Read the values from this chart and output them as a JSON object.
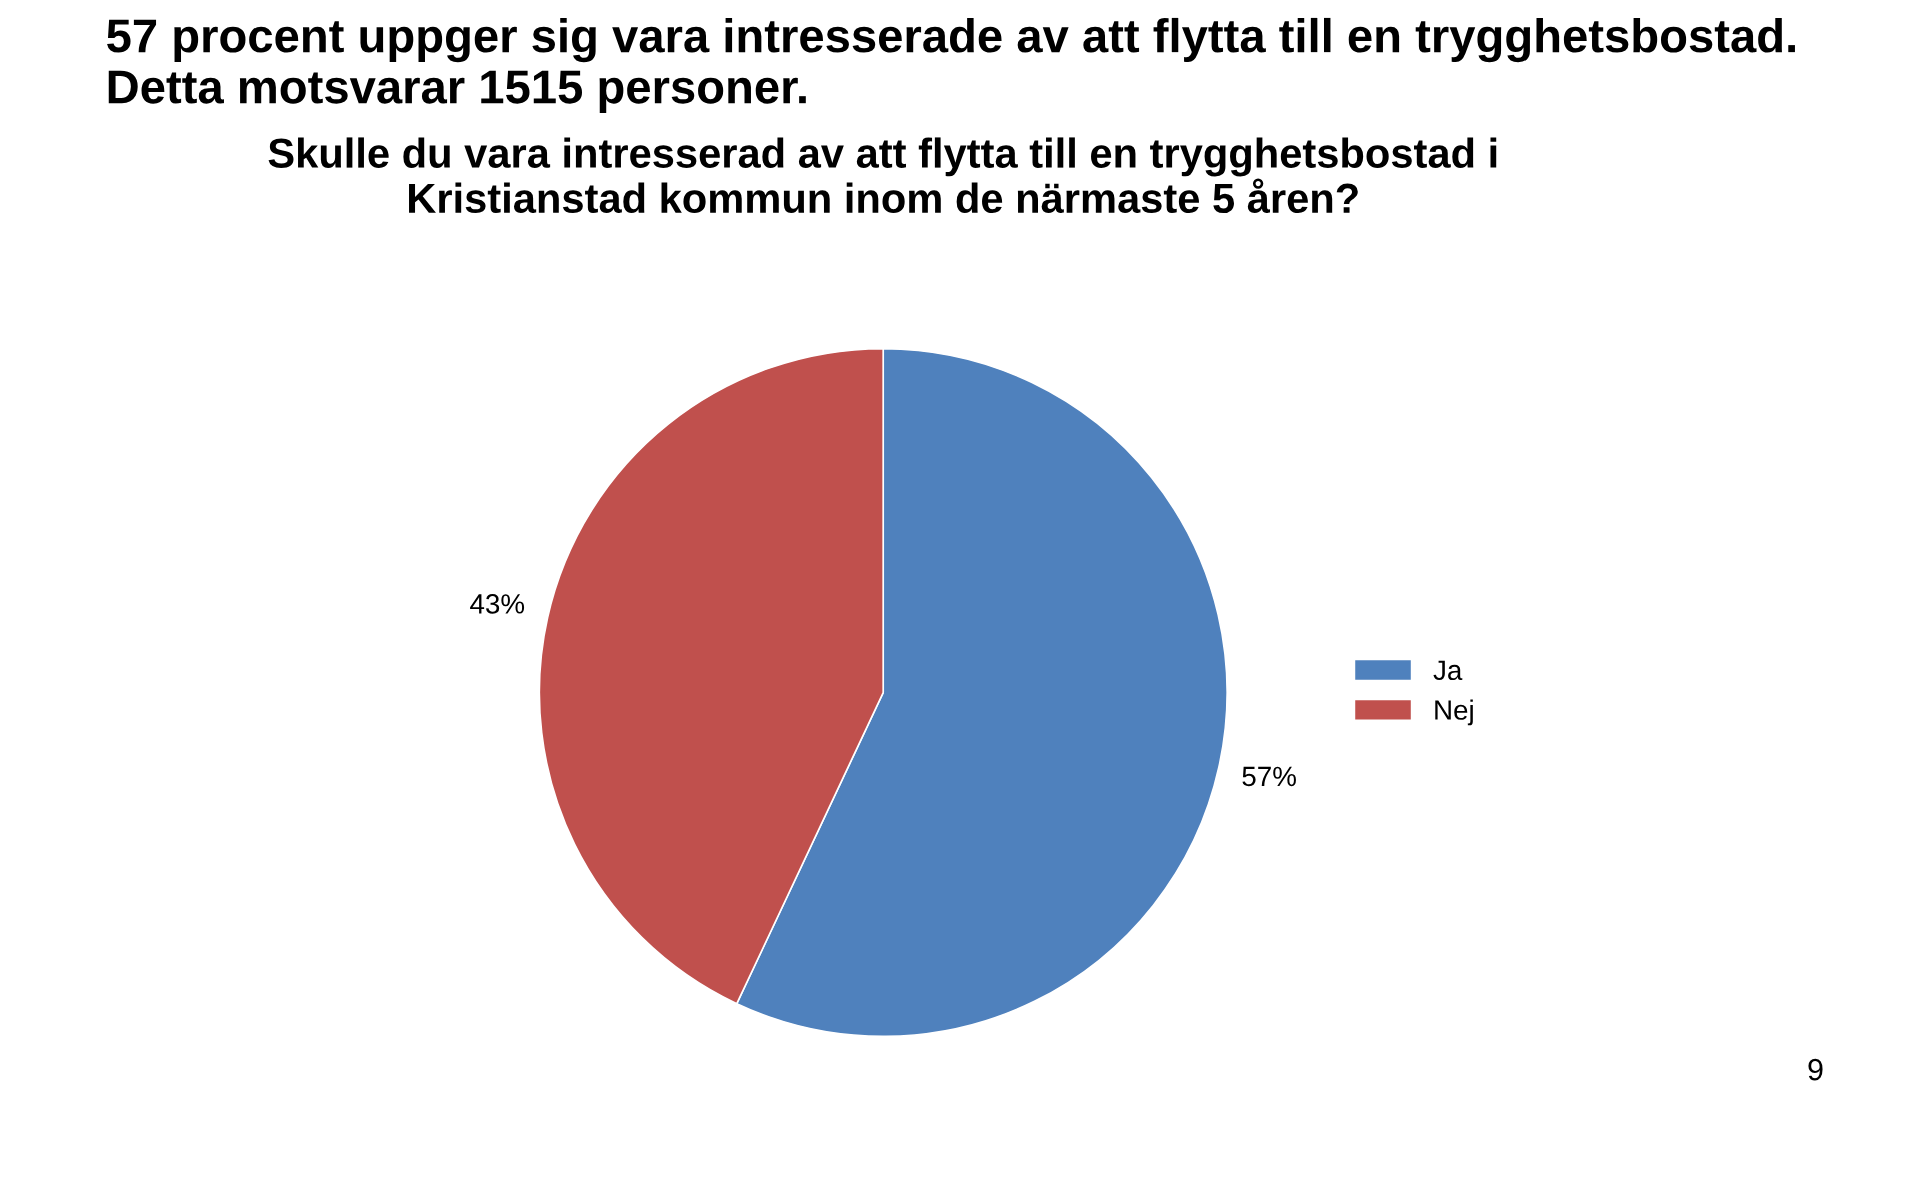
{
  "chart_data": {
    "type": "pie",
    "title": "57 procent uppger sig vara intresserade av att flytta till en trygghetsbostad. Detta motsvarar 1515 personer.",
    "subtitle": "Skulle du vara intresserad av att flytta till en trygghetsbostad i\nKristianstad kommun inom de närmaste 5 åren?",
    "categories": [
      "Ja",
      "Nej"
    ],
    "values": [
      57,
      43
    ],
    "colors": [
      "#4f81bd",
      "#c0504d"
    ],
    "value_labels": [
      "57%",
      "43%"
    ],
    "legend": "right",
    "annotations": [
      "9"
    ]
  }
}
